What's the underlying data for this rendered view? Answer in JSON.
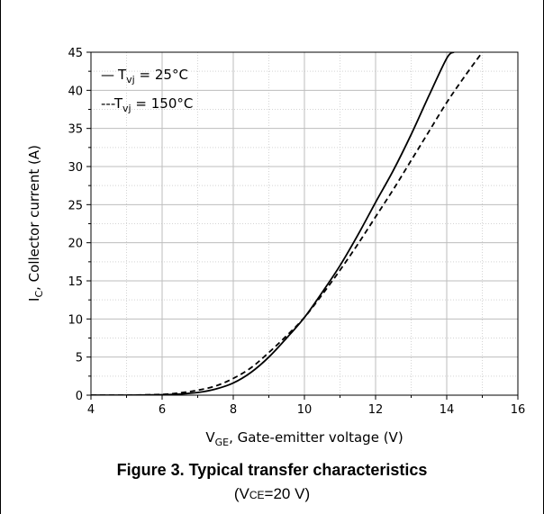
{
  "chart_data": {
    "type": "line",
    "xlabel": {
      "main": "V",
      "sub": "GE",
      "rest": ", Gate-emitter voltage (V)"
    },
    "ylabel": {
      "main": "I",
      "sub": "C",
      "rest": ", Collector current (A)"
    },
    "xlim": [
      4,
      16
    ],
    "ylim": [
      0,
      45
    ],
    "xticks": [
      4,
      6,
      8,
      10,
      12,
      14,
      16
    ],
    "yticks": [
      0,
      5,
      10,
      15,
      20,
      25,
      30,
      35,
      40,
      45
    ],
    "grid": true,
    "legend_position": "top-left",
    "series": [
      {
        "name": {
          "main": "T",
          "sub": "vj",
          "rest": " = 25°C"
        },
        "style": "solid",
        "legend_marker": "—",
        "x": [
          4.0,
          5.0,
          6.0,
          6.5,
          7.0,
          7.5,
          8.0,
          8.5,
          9.0,
          9.5,
          10.0,
          10.5,
          11.0,
          11.5,
          12.0,
          12.5,
          13.0,
          13.5,
          14.0,
          14.2
        ],
        "y": [
          0.0,
          0.0,
          0.05,
          0.15,
          0.35,
          0.8,
          1.6,
          3.0,
          5.0,
          7.5,
          10.2,
          13.5,
          17.0,
          21.0,
          25.3,
          29.5,
          34.2,
          39.3,
          44.2,
          45.0
        ]
      },
      {
        "name": {
          "main": "T",
          "sub": "vj",
          "rest": " = 150°C"
        },
        "style": "dashed",
        "legend_marker": "---",
        "x": [
          4.0,
          5.0,
          6.0,
          6.5,
          7.0,
          7.5,
          8.0,
          8.5,
          9.0,
          9.5,
          10.0,
          10.5,
          11.0,
          11.5,
          12.0,
          12.5,
          13.0,
          13.5,
          14.0,
          14.5,
          15.0
        ],
        "y": [
          0.0,
          0.0,
          0.1,
          0.3,
          0.65,
          1.2,
          2.2,
          3.6,
          5.6,
          7.8,
          10.2,
          13.2,
          16.4,
          19.8,
          23.4,
          27.0,
          30.8,
          34.6,
          38.4,
          41.8,
          45.0
        ]
      }
    ]
  },
  "caption": "Figure 3. Typical transfer characteristics",
  "conditions": {
    "open": "(V",
    "sub": "CE",
    "close": "=20 V)"
  },
  "colors": {
    "line": "#000000",
    "grid": "#bdbdbd",
    "minor_grid": "#d4d4d4"
  }
}
